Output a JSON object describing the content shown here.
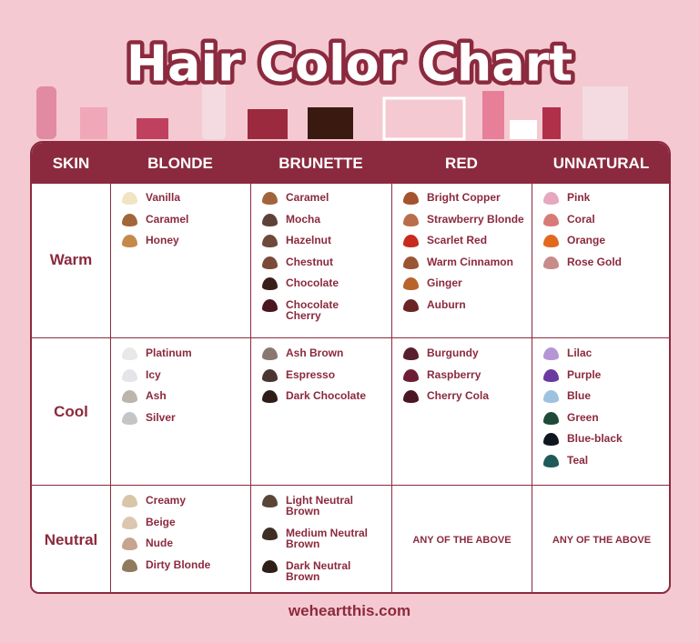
{
  "header": {
    "title": "Hair Color Chart"
  },
  "table": {
    "columns": [
      "SKIN",
      "BLONDE",
      "BRUNETTE",
      "RED",
      "UNNATURAL"
    ],
    "rows": [
      {
        "skin": "Warm",
        "cells": [
          {
            "items": [
              {
                "name": "Vanilla",
                "color": "#f1e4c3"
              },
              {
                "name": "Caramel",
                "color": "#a3653a"
              },
              {
                "name": "Honey",
                "color": "#c48a4c"
              }
            ]
          },
          {
            "items": [
              {
                "name": "Caramel",
                "color": "#a0643a"
              },
              {
                "name": "Mocha",
                "color": "#5e4138"
              },
              {
                "name": "Hazelnut",
                "color": "#6e4a3a"
              },
              {
                "name": "Chestnut",
                "color": "#7a4a38"
              },
              {
                "name": "Chocolate",
                "color": "#3a1e1a"
              },
              {
                "name": "Chocolate Cherry",
                "color": "#4a1620"
              }
            ]
          },
          {
            "items": [
              {
                "name": "Bright Copper",
                "color": "#a5532d"
              },
              {
                "name": "Strawberry Blonde",
                "color": "#b96d4a"
              },
              {
                "name": "Scarlet Red",
                "color": "#c82a1e"
              },
              {
                "name": "Warm Cinnamon",
                "color": "#9a5534"
              },
              {
                "name": "Ginger",
                "color": "#b8642c"
              },
              {
                "name": "Auburn",
                "color": "#6a2424"
              }
            ]
          },
          {
            "items": [
              {
                "name": "Pink",
                "color": "#e5a8c0"
              },
              {
                "name": "Coral",
                "color": "#d77b76"
              },
              {
                "name": "Orange",
                "color": "#e2681c"
              },
              {
                "name": "Rose Gold",
                "color": "#c98a8a"
              }
            ]
          }
        ]
      },
      {
        "skin": "Cool",
        "cells": [
          {
            "items": [
              {
                "name": "Platinum",
                "color": "#e9e8e6"
              },
              {
                "name": "Icy",
                "color": "#e3e5e8"
              },
              {
                "name": "Ash",
                "color": "#bdb4ac"
              },
              {
                "name": "Silver",
                "color": "#c4c5c7"
              }
            ]
          },
          {
            "items": [
              {
                "name": "Ash Brown",
                "color": "#8a7870"
              },
              {
                "name": "Espresso",
                "color": "#4a3530"
              },
              {
                "name": "Dark Chocolate",
                "color": "#2e1c18"
              }
            ]
          },
          {
            "items": [
              {
                "name": "Burgundy",
                "color": "#5a1e2e"
              },
              {
                "name": "Raspberry",
                "color": "#6e1e34"
              },
              {
                "name": "Cherry Cola",
                "color": "#4a1622"
              }
            ]
          },
          {
            "items": [
              {
                "name": "Lilac",
                "color": "#b495d6"
              },
              {
                "name": "Purple",
                "color": "#6a3aa0"
              },
              {
                "name": "Blue",
                "color": "#9ec1e0"
              },
              {
                "name": "Green",
                "color": "#1f4a3a"
              },
              {
                "name": "Blue-black",
                "color": "#0e1620"
              },
              {
                "name": "Teal",
                "color": "#1e5a5a"
              }
            ]
          }
        ]
      },
      {
        "skin": "Neutral",
        "cells": [
          {
            "items": [
              {
                "name": "Creamy",
                "color": "#d9c5a8"
              },
              {
                "name": "Beige",
                "color": "#ddc6b0"
              },
              {
                "name": "Nude",
                "color": "#c6a490"
              },
              {
                "name": "Dirty Blonde",
                "color": "#8f7a5e"
              }
            ]
          },
          {
            "items": [
              {
                "name": "Light Neutral Brown",
                "color": "#5a4636"
              },
              {
                "name": "Medium Neutral Brown",
                "color": "#3e2e24"
              },
              {
                "name": "Dark Neutral Brown",
                "color": "#2e2018"
              }
            ]
          },
          {
            "note": "ANY OF THE ABOVE"
          },
          {
            "note": "ANY OF THE ABOVE"
          }
        ]
      }
    ]
  },
  "footer": {
    "url": "weheartthis.com"
  }
}
